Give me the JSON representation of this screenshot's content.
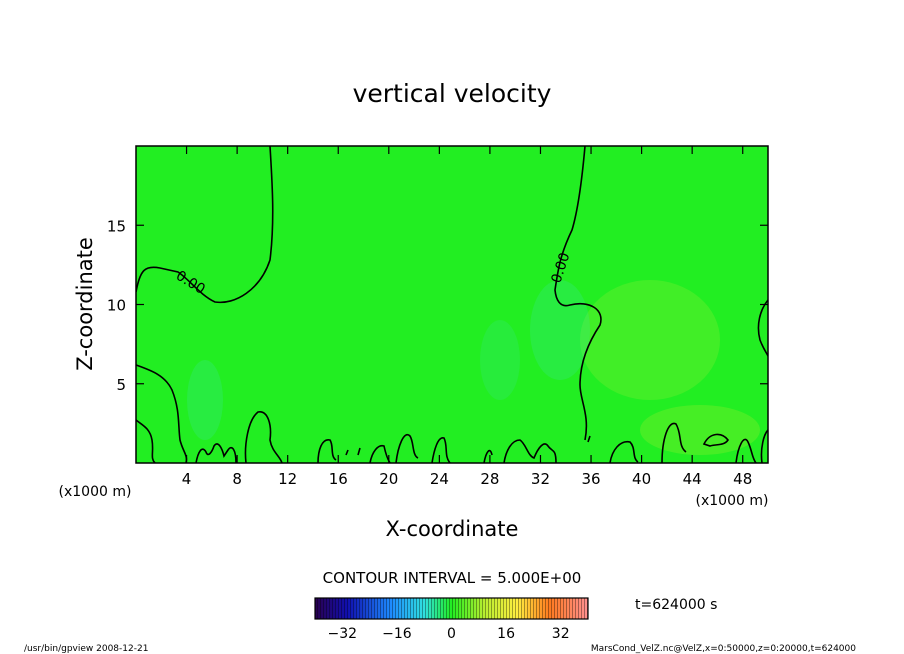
{
  "chart_data": {
    "type": "heatmap",
    "title": "vertical velocity",
    "xlabel": "X-coordinate",
    "ylabel": "Z-coordinate",
    "x_unit_label": "(x1000 m)",
    "y_unit_label": "(x1000 m)",
    "xlim": [
      0,
      50
    ],
    "ylim": [
      0,
      20
    ],
    "x_ticks": [
      4,
      8,
      12,
      16,
      20,
      24,
      28,
      32,
      36,
      40,
      44,
      48
    ],
    "y_ticks": [
      5,
      10,
      15
    ],
    "grid": false,
    "contour_interval_label": "CONTOUR INTERVAL = 5.000E+00",
    "contour_labels": [
      "0.00",
      "0.00"
    ],
    "time_label": "t=624000 s",
    "colorbar": {
      "ticks": [
        -32,
        -16,
        0,
        16,
        32
      ],
      "range": [
        -40,
        40
      ]
    },
    "field_color": "#22ee22",
    "contour_color": "#000000"
  },
  "footer": {
    "left": "/usr/bin/gpview  2008-12-21",
    "right": "MarsCond_VelZ.nc@VelZ,x=0:50000,z=0:20000,t=624000"
  }
}
